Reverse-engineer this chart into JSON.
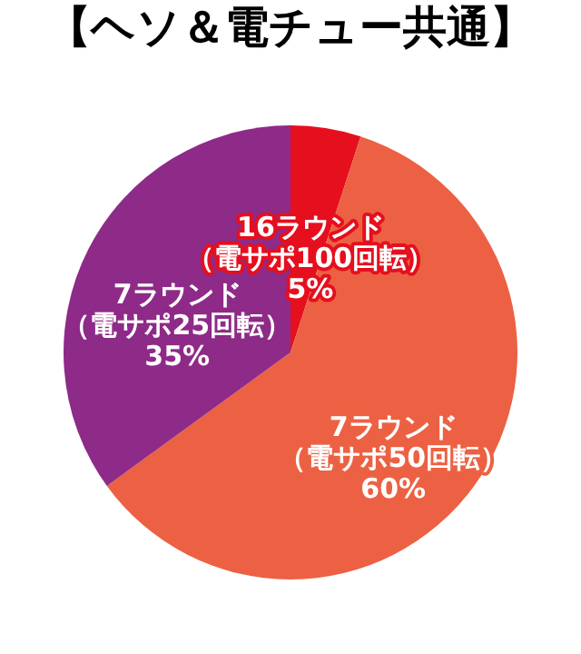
{
  "chart_data": {
    "type": "pie",
    "title": "【ヘソ＆電チュー共通】",
    "categories": [
      "16ラウンド（電サポ100回転）",
      "7ラウンド（電サポ50回転）",
      "7ラウンド（電サポ25回転）"
    ],
    "values": [
      5,
      60,
      35
    ],
    "value_labels": [
      "5%",
      "60%",
      "35%"
    ],
    "colors": [
      "#e60f1e",
      "#ec6143",
      "#8e2a88"
    ],
    "legend": false
  }
}
